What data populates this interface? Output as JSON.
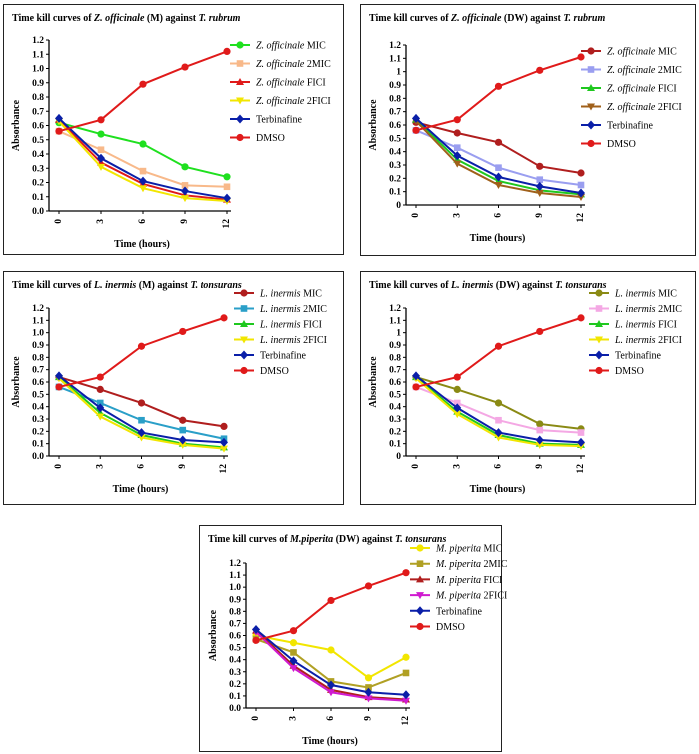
{
  "chart_data": [
    {
      "type": "line",
      "title": "Time kill curves of Z. officinale (M) against T. rubrum",
      "title_parts": [
        "Time kill curves of ",
        "Z. officinale",
        " (M) against ",
        "T. rubrum"
      ],
      "xlabel": "Time (hours)",
      "ylabel": "Absorbance",
      "x": [
        0,
        3,
        6,
        9,
        12
      ],
      "xticks": [
        "0",
        "3",
        "6",
        "9",
        "12"
      ],
      "ylim": [
        0,
        1.2
      ],
      "yticks": [
        "0.0",
        "0.1",
        "0.2",
        "0.3",
        "0.4",
        "0.5",
        "0.6",
        "0.7",
        "0.8",
        "0.9",
        "1.0",
        "1.1",
        "1.2"
      ],
      "legend_position": "right",
      "series": [
        {
          "name": "Z. officinale MIC",
          "name_italic": "Z. officinale",
          "name_rest": " MIC",
          "color": "#1fe01f",
          "marker": "circle",
          "values": [
            0.62,
            0.54,
            0.47,
            0.31,
            0.24
          ]
        },
        {
          "name": "Z. officinale 2MIC",
          "name_italic": "Z. officinale",
          "name_rest": " 2MIC",
          "color": "#f8b98a",
          "marker": "square",
          "values": [
            0.56,
            0.43,
            0.28,
            0.18,
            0.17
          ]
        },
        {
          "name": "Z. officinale FICI",
          "name_italic": "Z. officinale",
          "name_rest": " FICI",
          "color": "#e01a1a",
          "marker": "triangle",
          "values": [
            0.64,
            0.34,
            0.19,
            0.11,
            0.08
          ]
        },
        {
          "name": "Z. officinale 2FICI",
          "name_italic": "Z. officinale",
          "name_rest": " 2FICI",
          "color": "#f2e600",
          "marker": "triangle-down",
          "values": [
            0.63,
            0.31,
            0.16,
            0.09,
            0.07
          ]
        },
        {
          "name": "Terbinafine",
          "name_italic": "",
          "name_rest": "Terbinafine",
          "color": "#0a1fa8",
          "marker": "diamond",
          "values": [
            0.65,
            0.37,
            0.21,
            0.14,
            0.09
          ]
        },
        {
          "name": "DMSO",
          "name_italic": "",
          "name_rest": "DMSO",
          "color": "#e01a1a",
          "marker": "circle",
          "values": [
            0.56,
            0.64,
            0.89,
            1.01,
            1.12
          ]
        }
      ]
    },
    {
      "type": "line",
      "title": "Time kill curves of Z. officinale (DW) against T. rubrum",
      "title_parts": [
        "Time kill curves of ",
        "Z. officinale",
        " (DW) against ",
        "T. rubrum"
      ],
      "xlabel": "Time (hours)",
      "ylabel": "Absorbance",
      "x": [
        0,
        3,
        6,
        9,
        12
      ],
      "xticks": [
        "0",
        "3",
        "6",
        "9",
        "12"
      ],
      "ylim": [
        0,
        1.2
      ],
      "yticks": [
        "0",
        "0.1",
        "0.2",
        "0.3",
        "0.4",
        "0.5",
        "0.6",
        "0.7",
        "0.8",
        "0.9",
        "1",
        "1.1",
        "1.2"
      ],
      "legend_position": "right",
      "series": [
        {
          "name": "Z. officinale MIC",
          "name_italic": "Z. officinale",
          "name_rest": " MIC",
          "color": "#b01e1e",
          "marker": "circle",
          "values": [
            0.62,
            0.54,
            0.47,
            0.29,
            0.24
          ]
        },
        {
          "name": "Z. officinale 2MIC",
          "name_italic": "Z. officinale",
          "name_rest": " 2MIC",
          "color": "#9a9ef0",
          "marker": "square",
          "values": [
            0.56,
            0.43,
            0.28,
            0.19,
            0.15
          ]
        },
        {
          "name": "Z. officinale FICI",
          "name_italic": "Z. officinale",
          "name_rest": " FICI",
          "color": "#1fc81f",
          "marker": "triangle",
          "values": [
            0.64,
            0.34,
            0.18,
            0.11,
            0.08
          ]
        },
        {
          "name": "Z. officinale 2FICI",
          "name_italic": "Z. officinale",
          "name_rest": " 2FICI",
          "color": "#a0601a",
          "marker": "triangle-down",
          "values": [
            0.63,
            0.31,
            0.15,
            0.09,
            0.06
          ]
        },
        {
          "name": "Terbinafine",
          "name_italic": "",
          "name_rest": "Terbinafine",
          "color": "#0a1fa8",
          "marker": "diamond",
          "values": [
            0.65,
            0.37,
            0.21,
            0.14,
            0.09
          ]
        },
        {
          "name": "DMSO",
          "name_italic": "",
          "name_rest": "DMSO",
          "color": "#e01a1a",
          "marker": "circle",
          "values": [
            0.56,
            0.64,
            0.89,
            1.01,
            1.11
          ]
        }
      ]
    },
    {
      "type": "line",
      "title": "Time kill curves of L. inermis (M) against T. tonsurans",
      "title_parts": [
        "Time kill curves of ",
        "L. inermis",
        " (M) against ",
        "T. tonsurans"
      ],
      "xlabel": "Time (hours)",
      "ylabel": "Absorbance",
      "x": [
        0,
        3,
        6,
        9,
        12
      ],
      "xticks": [
        "0",
        "3",
        "6",
        "9",
        "12"
      ],
      "ylim": [
        0,
        1.2
      ],
      "yticks": [
        "0.0",
        "0.1",
        "0.2",
        "0.3",
        "0.4",
        "0.5",
        "0.6",
        "0.7",
        "0.8",
        "0.9",
        "1.0",
        "1.1",
        "1.2"
      ],
      "legend_position": "right",
      "series": [
        {
          "name": "L. inermis MIC",
          "name_italic": "L. inermis",
          "name_rest": " MIC",
          "color": "#b01e1e",
          "marker": "circle",
          "values": [
            0.64,
            0.54,
            0.43,
            0.29,
            0.24
          ]
        },
        {
          "name": "L. inermis 2MIC",
          "name_italic": "L. inermis",
          "name_rest": " 2MIC",
          "color": "#2a9fc8",
          "marker": "square",
          "values": [
            0.56,
            0.43,
            0.29,
            0.21,
            0.14
          ]
        },
        {
          "name": "L. inermis FICI",
          "name_italic": "L. inermis",
          "name_rest": " FICI",
          "color": "#1fc81f",
          "marker": "triangle",
          "values": [
            0.64,
            0.35,
            0.17,
            0.1,
            0.07
          ]
        },
        {
          "name": "L. inermis 2FICI",
          "name_italic": "L. inermis",
          "name_rest": " 2FICI",
          "color": "#f2e600",
          "marker": "triangle-down",
          "values": [
            0.63,
            0.32,
            0.15,
            0.09,
            0.06
          ]
        },
        {
          "name": "Terbinafine",
          "name_italic": "",
          "name_rest": "Terbinafine",
          "color": "#0a1fa8",
          "marker": "diamond",
          "values": [
            0.65,
            0.39,
            0.19,
            0.13,
            0.11
          ]
        },
        {
          "name": "DMSO",
          "name_italic": "",
          "name_rest": "DMSO",
          "color": "#e01a1a",
          "marker": "circle",
          "values": [
            0.56,
            0.64,
            0.89,
            1.01,
            1.12
          ]
        }
      ]
    },
    {
      "type": "line",
      "title": "Time kill curves of L. inermis (DW) against T. tonsurans",
      "title_parts": [
        "Time kill curves of ",
        "L. inermis",
        " (DW) against ",
        "T. tonsurans"
      ],
      "xlabel": "Time (hours)",
      "ylabel": "Absorbance",
      "x": [
        0,
        3,
        6,
        9,
        12
      ],
      "xticks": [
        "0",
        "3",
        "6",
        "9",
        "12"
      ],
      "ylim": [
        0,
        1.2
      ],
      "yticks": [
        "0",
        "0.1",
        "0.2",
        "0.3",
        "0.4",
        "0.5",
        "0.6",
        "0.7",
        "0.8",
        "0.9",
        "1",
        "1.1",
        "1.2"
      ],
      "legend_position": "right",
      "series": [
        {
          "name": "L. inermis MIC",
          "name_italic": "L. inermis",
          "name_rest": " MIC",
          "color": "#8a8a14",
          "marker": "circle",
          "values": [
            0.64,
            0.54,
            0.43,
            0.26,
            0.22
          ]
        },
        {
          "name": "L. inermis 2MIC",
          "name_italic": "L. inermis",
          "name_rest": " 2MIC",
          "color": "#f4a8e4",
          "marker": "square",
          "values": [
            0.56,
            0.43,
            0.29,
            0.21,
            0.19
          ]
        },
        {
          "name": "L. inermis FICI",
          "name_italic": "L. inermis",
          "name_rest": " FICI",
          "color": "#1fc81f",
          "marker": "triangle",
          "values": [
            0.64,
            0.36,
            0.17,
            0.1,
            0.09
          ]
        },
        {
          "name": "L. inermis 2FICI",
          "name_italic": "L. inermis",
          "name_rest": " 2FICI",
          "color": "#f2e600",
          "marker": "triangle-down",
          "values": [
            0.63,
            0.34,
            0.15,
            0.09,
            0.08
          ]
        },
        {
          "name": "Terbinafine",
          "name_italic": "",
          "name_rest": "Terbinafine",
          "color": "#0a1fa8",
          "marker": "diamond",
          "values": [
            0.65,
            0.39,
            0.19,
            0.13,
            0.11
          ]
        },
        {
          "name": "DMSO",
          "name_italic": "",
          "name_rest": "DMSO",
          "color": "#e01a1a",
          "marker": "circle",
          "values": [
            0.56,
            0.64,
            0.89,
            1.01,
            1.12
          ]
        }
      ]
    },
    {
      "type": "line",
      "title": "Time kill curves of M.piperita (DW) against T. tonsurans",
      "title_parts": [
        "Time kill curves of ",
        "M.piperita",
        " (DW) against ",
        "T. tonsurans"
      ],
      "xlabel": "Time (hours)",
      "ylabel": "Absorbance",
      "x": [
        0,
        3,
        6,
        9,
        12
      ],
      "xticks": [
        "0",
        "3",
        "6",
        "9",
        "12"
      ],
      "ylim": [
        0,
        1.2
      ],
      "yticks": [
        "0.0",
        "0.1",
        "0.2",
        "0.3",
        "0.4",
        "0.5",
        "0.6",
        "0.7",
        "0.8",
        "0.9",
        "1.0",
        "1.1",
        "1.2"
      ],
      "legend_position": "right",
      "series": [
        {
          "name": "M. piperita MIC",
          "name_italic": "M. piperita",
          "name_rest": " MIC",
          "color": "#f2e600",
          "marker": "circle",
          "values": [
            0.6,
            0.54,
            0.48,
            0.25,
            0.42
          ]
        },
        {
          "name": "M. piperita 2MIC",
          "name_italic": "M. piperita",
          "name_rest": " 2MIC",
          "color": "#b0a024",
          "marker": "square",
          "values": [
            0.57,
            0.46,
            0.22,
            0.17,
            0.29
          ]
        },
        {
          "name": "M. piperita FICI",
          "name_italic": "M. piperita",
          "name_rest": " FICI",
          "color": "#b01e1e",
          "marker": "triangle",
          "values": [
            0.64,
            0.35,
            0.15,
            0.09,
            0.07
          ]
        },
        {
          "name": "M. piperita 2FICI",
          "name_italic": "M. piperita",
          "name_rest": " 2FICI",
          "color": "#d01ad0",
          "marker": "triangle-down",
          "values": [
            0.63,
            0.33,
            0.13,
            0.08,
            0.06
          ]
        },
        {
          "name": "Terbinafine",
          "name_italic": "",
          "name_rest": "Terbinafine",
          "color": "#0a1fa8",
          "marker": "diamond",
          "values": [
            0.65,
            0.39,
            0.19,
            0.13,
            0.11
          ]
        },
        {
          "name": "DMSO",
          "name_italic": "",
          "name_rest": "DMSO",
          "color": "#e01a1a",
          "marker": "circle",
          "values": [
            0.56,
            0.64,
            0.89,
            1.01,
            1.12
          ]
        }
      ]
    }
  ]
}
